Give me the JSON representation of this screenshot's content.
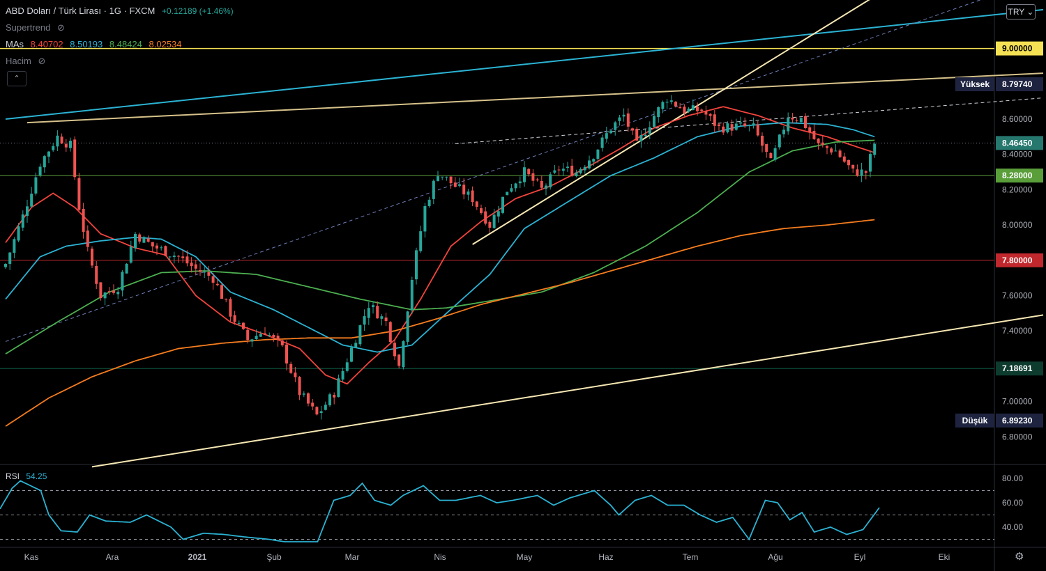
{
  "header": {
    "title": "ABD Doları / Türk Lirası · 1G · FXCM",
    "change": "+0.12189 (+1.46%)",
    "supertrend_label": "Supertrend",
    "mas_label": "MAs",
    "ma_values": [
      {
        "value": "8.40702",
        "color": "#f2443d"
      },
      {
        "value": "8.50193",
        "color": "#2bb3d4"
      },
      {
        "value": "8.48424",
        "color": "#4caf50"
      },
      {
        "value": "8.02534",
        "color": "#f57c1f"
      }
    ],
    "volume_label": "Hacim",
    "collapse_icon": "chevron-up-icon",
    "currency_button": "TRY"
  },
  "price_axis": {
    "ticks": [
      "9.00000",
      "8.60000",
      "8.40000",
      "8.20000",
      "8.00000",
      "7.60000",
      "7.40000",
      "7.00000",
      "6.80000"
    ],
    "labels": [
      {
        "text": "9.00000",
        "value": 9.0,
        "bg": "#f5e154",
        "fg": "#000000"
      },
      {
        "text": "8.79740",
        "value": 8.7974,
        "bg": "#1e2440",
        "fg": "#ffffff",
        "tag": "Yüksek"
      },
      {
        "text": "8.46450",
        "value": 8.4645,
        "bg": "#26786e",
        "fg": "#ffffff"
      },
      {
        "text": "8.28000",
        "value": 8.28,
        "bg": "#5a9e3a",
        "fg": "#ffffff"
      },
      {
        "text": "7.80000",
        "value": 7.8,
        "bg": "#c0282d",
        "fg": "#ffffff"
      },
      {
        "text": "7.18691",
        "value": 7.18691,
        "bg": "#0d3b2e",
        "fg": "#ffffff"
      },
      {
        "text": "6.89230",
        "value": 6.8923,
        "bg": "#1e2440",
        "fg": "#ffffff",
        "tag": "Düşük"
      }
    ]
  },
  "time_axis": {
    "labels": [
      "Kas",
      "Ara",
      "2021",
      "Şub",
      "Mar",
      "Nis",
      "May",
      "Haz",
      "Tem",
      "Ağu",
      "Eyl",
      "Eki"
    ]
  },
  "rsi": {
    "label": "RSI",
    "value": "54.25",
    "ticks": [
      "80.00",
      "60.00",
      "40.00"
    ],
    "color": "#2bb3d4"
  },
  "settings_icon": "gear-icon",
  "chart_data": {
    "type": "candlestick",
    "symbol": "USD/TRY",
    "interval": "1D",
    "ylim": [
      6.6,
      9.15
    ],
    "up_color": "#26a69a",
    "down_color": "#ef5350",
    "close_keypoints": [
      {
        "t": 0,
        "v": 7.78
      },
      {
        "t": 4,
        "v": 8.05
      },
      {
        "t": 8,
        "v": 8.35
      },
      {
        "t": 12,
        "v": 8.5
      },
      {
        "t": 15,
        "v": 8.45
      },
      {
        "t": 17,
        "v": 8.1
      },
      {
        "t": 19,
        "v": 7.85
      },
      {
        "t": 22,
        "v": 7.6
      },
      {
        "t": 26,
        "v": 7.65
      },
      {
        "t": 30,
        "v": 7.95
      },
      {
        "t": 34,
        "v": 7.88
      },
      {
        "t": 40,
        "v": 7.82
      },
      {
        "t": 44,
        "v": 7.75
      },
      {
        "t": 48,
        "v": 7.7
      },
      {
        "t": 52,
        "v": 7.5
      },
      {
        "t": 56,
        "v": 7.35
      },
      {
        "t": 60,
        "v": 7.4
      },
      {
        "t": 64,
        "v": 7.3
      },
      {
        "t": 68,
        "v": 7.05
      },
      {
        "t": 72,
        "v": 6.92
      },
      {
        "t": 76,
        "v": 7.05
      },
      {
        "t": 80,
        "v": 7.3
      },
      {
        "t": 84,
        "v": 7.55
      },
      {
        "t": 88,
        "v": 7.45
      },
      {
        "t": 91,
        "v": 7.2
      },
      {
        "t": 94,
        "v": 7.7
      },
      {
        "t": 97,
        "v": 8.1
      },
      {
        "t": 100,
        "v": 8.3
      },
      {
        "t": 104,
        "v": 8.22
      },
      {
        "t": 108,
        "v": 8.15
      },
      {
        "t": 112,
        "v": 8.0
      },
      {
        "t": 116,
        "v": 8.2
      },
      {
        "t": 120,
        "v": 8.3
      },
      {
        "t": 124,
        "v": 8.2
      },
      {
        "t": 128,
        "v": 8.32
      },
      {
        "t": 132,
        "v": 8.3
      },
      {
        "t": 136,
        "v": 8.4
      },
      {
        "t": 140,
        "v": 8.55
      },
      {
        "t": 143,
        "v": 8.62
      },
      {
        "t": 146,
        "v": 8.45
      },
      {
        "t": 150,
        "v": 8.62
      },
      {
        "t": 153,
        "v": 8.72
      },
      {
        "t": 157,
        "v": 8.65
      },
      {
        "t": 161,
        "v": 8.65
      },
      {
        "t": 165,
        "v": 8.55
      },
      {
        "t": 170,
        "v": 8.56
      },
      {
        "t": 173,
        "v": 8.55
      },
      {
        "t": 177,
        "v": 8.35
      },
      {
        "t": 181,
        "v": 8.62
      },
      {
        "t": 184,
        "v": 8.6
      },
      {
        "t": 188,
        "v": 8.45
      },
      {
        "t": 192,
        "v": 8.42
      },
      {
        "t": 196,
        "v": 8.3
      },
      {
        "t": 199,
        "v": 8.3
      },
      {
        "t": 201,
        "v": 8.46
      }
    ],
    "moving_averages": [
      {
        "name": "MA 20",
        "color": "#f2443d",
        "keypoints": [
          {
            "t": 0,
            "v": 7.9
          },
          {
            "t": 6,
            "v": 8.1
          },
          {
            "t": 11,
            "v": 8.18
          },
          {
            "t": 16,
            "v": 8.1
          },
          {
            "t": 22,
            "v": 7.95
          },
          {
            "t": 30,
            "v": 7.87
          },
          {
            "t": 37,
            "v": 7.83
          },
          {
            "t": 44,
            "v": 7.6
          },
          {
            "t": 52,
            "v": 7.45
          },
          {
            "t": 60,
            "v": 7.38
          },
          {
            "t": 68,
            "v": 7.3
          },
          {
            "t": 74,
            "v": 7.15
          },
          {
            "t": 79,
            "v": 7.1
          },
          {
            "t": 84,
            "v": 7.22
          },
          {
            "t": 90,
            "v": 7.35
          },
          {
            "t": 96,
            "v": 7.58
          },
          {
            "t": 103,
            "v": 7.88
          },
          {
            "t": 110,
            "v": 8.02
          },
          {
            "t": 118,
            "v": 8.15
          },
          {
            "t": 126,
            "v": 8.22
          },
          {
            "t": 134,
            "v": 8.32
          },
          {
            "t": 142,
            "v": 8.43
          },
          {
            "t": 150,
            "v": 8.55
          },
          {
            "t": 158,
            "v": 8.62
          },
          {
            "t": 166,
            "v": 8.67
          },
          {
            "t": 174,
            "v": 8.62
          },
          {
            "t": 182,
            "v": 8.55
          },
          {
            "t": 190,
            "v": 8.5
          },
          {
            "t": 196,
            "v": 8.45
          },
          {
            "t": 201,
            "v": 8.41
          }
        ]
      },
      {
        "name": "MA 50",
        "color": "#2bb3d4",
        "keypoints": [
          {
            "t": 0,
            "v": 7.58
          },
          {
            "t": 8,
            "v": 7.82
          },
          {
            "t": 14,
            "v": 7.88
          },
          {
            "t": 22,
            "v": 7.91
          },
          {
            "t": 30,
            "v": 7.93
          },
          {
            "t": 36,
            "v": 7.92
          },
          {
            "t": 44,
            "v": 7.82
          },
          {
            "t": 52,
            "v": 7.62
          },
          {
            "t": 62,
            "v": 7.52
          },
          {
            "t": 70,
            "v": 7.42
          },
          {
            "t": 78,
            "v": 7.32
          },
          {
            "t": 86,
            "v": 7.28
          },
          {
            "t": 94,
            "v": 7.32
          },
          {
            "t": 102,
            "v": 7.5
          },
          {
            "t": 112,
            "v": 7.72
          },
          {
            "t": 120,
            "v": 7.98
          },
          {
            "t": 130,
            "v": 8.13
          },
          {
            "t": 140,
            "v": 8.28
          },
          {
            "t": 150,
            "v": 8.38
          },
          {
            "t": 160,
            "v": 8.5
          },
          {
            "t": 170,
            "v": 8.56
          },
          {
            "t": 180,
            "v": 8.58
          },
          {
            "t": 190,
            "v": 8.57
          },
          {
            "t": 196,
            "v": 8.54
          },
          {
            "t": 201,
            "v": 8.5
          }
        ]
      },
      {
        "name": "MA 100",
        "color": "#4caf50",
        "keypoints": [
          {
            "t": 0,
            "v": 7.27
          },
          {
            "t": 12,
            "v": 7.45
          },
          {
            "t": 24,
            "v": 7.62
          },
          {
            "t": 36,
            "v": 7.73
          },
          {
            "t": 46,
            "v": 7.74
          },
          {
            "t": 58,
            "v": 7.72
          },
          {
            "t": 70,
            "v": 7.65
          },
          {
            "t": 82,
            "v": 7.58
          },
          {
            "t": 94,
            "v": 7.52
          },
          {
            "t": 102,
            "v": 7.53
          },
          {
            "t": 112,
            "v": 7.57
          },
          {
            "t": 124,
            "v": 7.62
          },
          {
            "t": 136,
            "v": 7.73
          },
          {
            "t": 148,
            "v": 7.88
          },
          {
            "t": 160,
            "v": 8.07
          },
          {
            "t": 172,
            "v": 8.3
          },
          {
            "t": 182,
            "v": 8.42
          },
          {
            "t": 192,
            "v": 8.47
          },
          {
            "t": 201,
            "v": 8.48
          }
        ]
      },
      {
        "name": "MA 200",
        "color": "#f57c1f",
        "keypoints": [
          {
            "t": 0,
            "v": 6.86
          },
          {
            "t": 10,
            "v": 7.02
          },
          {
            "t": 20,
            "v": 7.14
          },
          {
            "t": 30,
            "v": 7.23
          },
          {
            "t": 40,
            "v": 7.3
          },
          {
            "t": 50,
            "v": 7.33
          },
          {
            "t": 60,
            "v": 7.35
          },
          {
            "t": 70,
            "v": 7.36
          },
          {
            "t": 80,
            "v": 7.36
          },
          {
            "t": 90,
            "v": 7.4
          },
          {
            "t": 100,
            "v": 7.47
          },
          {
            "t": 110,
            "v": 7.55
          },
          {
            "t": 120,
            "v": 7.61
          },
          {
            "t": 130,
            "v": 7.67
          },
          {
            "t": 140,
            "v": 7.74
          },
          {
            "t": 150,
            "v": 7.81
          },
          {
            "t": 160,
            "v": 7.88
          },
          {
            "t": 170,
            "v": 7.94
          },
          {
            "t": 180,
            "v": 7.98
          },
          {
            "t": 190,
            "v": 8.0
          },
          {
            "t": 201,
            "v": 8.03
          }
        ]
      }
    ],
    "horizontal_levels": [
      {
        "value": 9.0,
        "color": "#f5e154",
        "style": "solid"
      },
      {
        "value": 8.4645,
        "color": "#787b86",
        "style": "dotted"
      },
      {
        "value": 8.28,
        "color": "#5a9e3a",
        "style": "solid"
      },
      {
        "value": 7.8,
        "color": "#c0282d",
        "style": "solid"
      },
      {
        "value": 7.18691,
        "color": "#0d5a45",
        "style": "solid"
      }
    ],
    "trend_lines": [
      {
        "from": {
          "t": 0,
          "v": 8.6
        },
        "to": {
          "t": 240,
          "v": 9.22
        },
        "color": "#2bb3d4",
        "style": "solid"
      },
      {
        "from": {
          "t": 5,
          "v": 8.58
        },
        "to": {
          "t": 240,
          "v": 8.86
        },
        "color": "#d6c28a",
        "style": "solid"
      },
      {
        "from": {
          "t": 0,
          "v": 7.34
        },
        "to": {
          "t": 240,
          "v": 9.4
        },
        "color": "#6f7fb8",
        "style": "dashed"
      },
      {
        "from": {
          "t": 104,
          "v": 8.46
        },
        "to": {
          "t": 240,
          "v": 8.72
        },
        "color": "#d1d4dc",
        "style": "dashed"
      },
      {
        "from": {
          "t": 108,
          "v": 7.89
        },
        "to": {
          "t": 200,
          "v": 9.28
        },
        "color": "#f6e7b3",
        "style": "solid"
      },
      {
        "from": {
          "t": 20,
          "v": 6.63
        },
        "to": {
          "t": 240,
          "v": 7.49
        },
        "color": "#f6e7b3",
        "style": "solid"
      }
    ],
    "rsi_keypoints": [
      {
        "t": 0,
        "v": 55
      },
      {
        "t": 3,
        "v": 72
      },
      {
        "t": 5,
        "v": 78
      },
      {
        "t": 10,
        "v": 70
      },
      {
        "t": 12,
        "v": 50
      },
      {
        "t": 15,
        "v": 37
      },
      {
        "t": 19,
        "v": 36
      },
      {
        "t": 22,
        "v": 50
      },
      {
        "t": 26,
        "v": 45
      },
      {
        "t": 32,
        "v": 44
      },
      {
        "t": 36,
        "v": 50
      },
      {
        "t": 42,
        "v": 40
      },
      {
        "t": 45,
        "v": 30
      },
      {
        "t": 50,
        "v": 35
      },
      {
        "t": 55,
        "v": 34
      },
      {
        "t": 60,
        "v": 32
      },
      {
        "t": 66,
        "v": 30
      },
      {
        "t": 70,
        "v": 28
      },
      {
        "t": 74,
        "v": 28
      },
      {
        "t": 78,
        "v": 28
      },
      {
        "t": 82,
        "v": 62
      },
      {
        "t": 86,
        "v": 66
      },
      {
        "t": 89,
        "v": 76
      },
      {
        "t": 92,
        "v": 62
      },
      {
        "t": 96,
        "v": 58
      },
      {
        "t": 99,
        "v": 66
      },
      {
        "t": 104,
        "v": 74
      },
      {
        "t": 108,
        "v": 62
      },
      {
        "t": 112,
        "v": 62
      },
      {
        "t": 118,
        "v": 66
      },
      {
        "t": 122,
        "v": 60
      },
      {
        "t": 126,
        "v": 62
      },
      {
        "t": 132,
        "v": 66
      },
      {
        "t": 136,
        "v": 58
      },
      {
        "t": 140,
        "v": 64
      },
      {
        "t": 146,
        "v": 70
      },
      {
        "t": 150,
        "v": 58
      },
      {
        "t": 152,
        "v": 50
      },
      {
        "t": 156,
        "v": 62
      },
      {
        "t": 160,
        "v": 66
      },
      {
        "t": 164,
        "v": 58
      },
      {
        "t": 168,
        "v": 58
      },
      {
        "t": 172,
        "v": 50
      },
      {
        "t": 176,
        "v": 44
      },
      {
        "t": 180,
        "v": 48
      },
      {
        "t": 184,
        "v": 30
      },
      {
        "t": 188,
        "v": 62
      },
      {
        "t": 191,
        "v": 60
      },
      {
        "t": 194,
        "v": 46
      },
      {
        "t": 197,
        "v": 52
      },
      {
        "t": 200,
        "v": 36
      },
      {
        "t": 204,
        "v": 40
      },
      {
        "t": 208,
        "v": 34
      },
      {
        "t": 212,
        "v": 38
      },
      {
        "t": 216,
        "v": 56
      }
    ]
  }
}
